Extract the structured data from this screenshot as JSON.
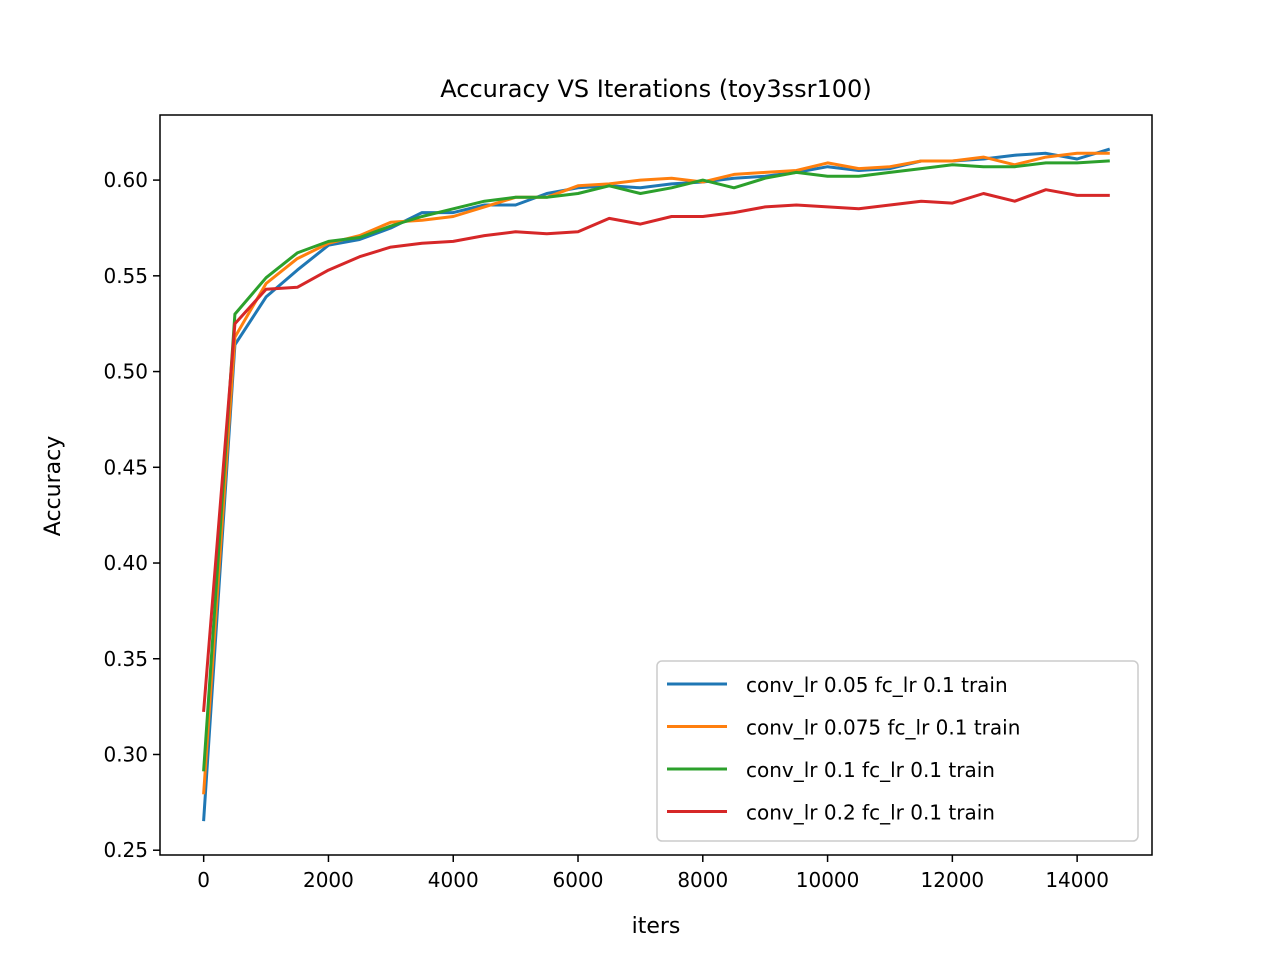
{
  "chart_data": {
    "type": "line",
    "title": "Accuracy VS Iterations (toy3ssr100)",
    "xlabel": "iters",
    "ylabel": "Accuracy",
    "xlim": [
      -700,
      15200
    ],
    "ylim": [
      0.2475,
      0.634
    ],
    "xticks": [
      0,
      2000,
      4000,
      6000,
      8000,
      10000,
      12000,
      14000
    ],
    "yticks": [
      0.25,
      0.3,
      0.35,
      0.4,
      0.45,
      0.5,
      0.55,
      0.6
    ],
    "grid": false,
    "legend_position": "lower-right",
    "x": [
      0,
      500,
      1000,
      1500,
      2000,
      2500,
      3000,
      3500,
      4000,
      4500,
      5000,
      5500,
      6000,
      6500,
      7000,
      7500,
      8000,
      8500,
      9000,
      9500,
      10000,
      10500,
      11000,
      11500,
      12000,
      12500,
      13000,
      13500,
      14000,
      14500
    ],
    "series": [
      {
        "name": "conv_lr 0.05 fc_lr 0.1 train",
        "color": "#1f77b4",
        "values": [
          0.266,
          0.514,
          0.539,
          0.553,
          0.566,
          0.569,
          0.575,
          0.583,
          0.583,
          0.587,
          0.587,
          0.593,
          0.596,
          0.597,
          0.596,
          0.598,
          0.599,
          0.601,
          0.602,
          0.604,
          0.607,
          0.605,
          0.606,
          0.61,
          0.61,
          0.611,
          0.613,
          0.614,
          0.611,
          0.616
        ]
      },
      {
        "name": "conv_lr 0.075 fc_lr 0.1 train",
        "color": "#ff7f0e",
        "values": [
          0.28,
          0.518,
          0.546,
          0.559,
          0.567,
          0.571,
          0.578,
          0.579,
          0.581,
          0.586,
          0.591,
          0.591,
          0.597,
          0.598,
          0.6,
          0.601,
          0.599,
          0.603,
          0.604,
          0.605,
          0.609,
          0.606,
          0.607,
          0.61,
          0.61,
          0.612,
          0.608,
          0.612,
          0.614,
          0.614
        ]
      },
      {
        "name": "conv_lr 0.1 fc_lr 0.1 train",
        "color": "#2ca02c",
        "values": [
          0.292,
          0.53,
          0.549,
          0.562,
          0.568,
          0.57,
          0.576,
          0.581,
          0.585,
          0.589,
          0.591,
          0.591,
          0.593,
          0.597,
          0.593,
          0.596,
          0.6,
          0.596,
          0.601,
          0.604,
          0.602,
          0.602,
          0.604,
          0.606,
          0.608,
          0.607,
          0.607,
          0.609,
          0.609,
          0.61
        ]
      },
      {
        "name": "conv_lr 0.2 fc_lr 0.1 train",
        "color": "#d62728",
        "values": [
          0.323,
          0.525,
          0.543,
          0.544,
          0.553,
          0.56,
          0.565,
          0.567,
          0.568,
          0.571,
          0.573,
          0.572,
          0.573,
          0.58,
          0.577,
          0.581,
          0.581,
          0.583,
          0.586,
          0.587,
          0.586,
          0.585,
          0.587,
          0.589,
          0.588,
          0.593,
          0.589,
          0.595,
          0.592,
          0.592
        ]
      }
    ]
  }
}
